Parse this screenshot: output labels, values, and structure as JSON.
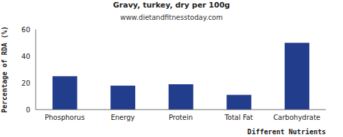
{
  "chart_data": {
    "type": "bar",
    "title": "Gravy, turkey, dry per 100g",
    "subtitle": "www.dietandfitnesstoday.com",
    "x_label": "Different Nutrients",
    "y_label": "Percentage of RDA (%)",
    "categories": [
      "Phosphorus",
      "Energy",
      "Protein",
      "Total Fat",
      "Carbohydrate"
    ],
    "values": [
      25,
      18,
      19,
      11,
      50
    ],
    "color": "#233d8d",
    "ylim": [
      0,
      60
    ],
    "yticks": [
      0,
      20,
      40,
      60
    ],
    "grid": false
  }
}
